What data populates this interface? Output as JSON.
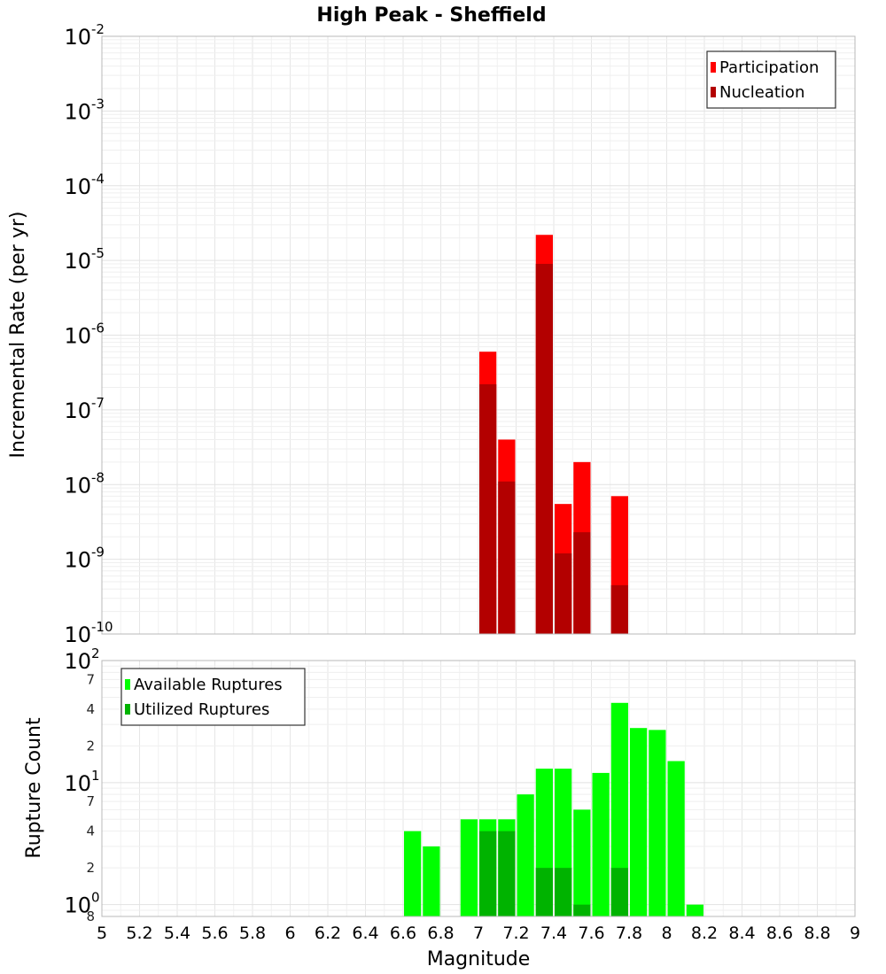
{
  "chart_data": [
    {
      "type": "bar",
      "title": "High Peak - Sheffield",
      "xlabel": "",
      "ylabel": "Incremental Rate (per yr)",
      "yscale": "log",
      "ylim": [
        1e-10,
        0.01
      ],
      "xlim": [
        5,
        9
      ],
      "bar_width": 0.1,
      "grid": true,
      "legend_position": "top-right",
      "y_major_ticks": [
        {
          "base": "10",
          "exp": "-10",
          "value": 1e-10
        },
        {
          "base": "10",
          "exp": "-9",
          "value": 1e-09
        },
        {
          "base": "10",
          "exp": "-8",
          "value": 1e-08
        },
        {
          "base": "10",
          "exp": "-7",
          "value": 1e-07
        },
        {
          "base": "10",
          "exp": "-6",
          "value": 1e-06
        },
        {
          "base": "10",
          "exp": "-5",
          "value": 1e-05
        },
        {
          "base": "10",
          "exp": "-4",
          "value": 0.0001
        },
        {
          "base": "10",
          "exp": "-3",
          "value": 0.001
        },
        {
          "base": "10",
          "exp": "-2",
          "value": 0.01
        }
      ],
      "series": [
        {
          "name": "Participation",
          "color": "#ff0000",
          "x": [
            7.05,
            7.15,
            7.35,
            7.45,
            7.55,
            7.75
          ],
          "values": [
            6e-07,
            4e-08,
            2.2e-05,
            5.5e-09,
            2e-08,
            7e-09
          ]
        },
        {
          "name": "Nucleation",
          "color": "#b30000",
          "x": [
            7.05,
            7.15,
            7.35,
            7.45,
            7.55,
            7.75
          ],
          "values": [
            2.2e-07,
            1.1e-08,
            9e-06,
            1.2e-09,
            2.3e-09,
            4.5e-10
          ]
        }
      ]
    },
    {
      "type": "bar",
      "title": "",
      "xlabel": "Magnitude",
      "ylabel": "Rupture Count",
      "yscale": "log",
      "ylim": [
        0.8,
        100
      ],
      "xlim": [
        5,
        9
      ],
      "bar_width": 0.1,
      "grid": true,
      "legend_position": "top-left",
      "x_ticks": [
        "5",
        "5.2",
        "5.4",
        "5.6",
        "5.8",
        "6",
        "6.2",
        "6.4",
        "6.6",
        "6.8",
        "7",
        "7.2",
        "7.4",
        "7.6",
        "7.8",
        "8",
        "8.2",
        "8.4",
        "8.6",
        "8.8",
        "9"
      ],
      "y_major_ticks": [
        {
          "base": "10",
          "exp": "0",
          "value": 1
        },
        {
          "base": "10",
          "exp": "1",
          "value": 10
        },
        {
          "base": "10",
          "exp": "2",
          "value": 100
        }
      ],
      "y_minor_ticks": [
        {
          "label": "8",
          "value": 0.8
        },
        {
          "label": "2",
          "value": 2
        },
        {
          "label": "4",
          "value": 4
        },
        {
          "label": "7",
          "value": 7
        },
        {
          "label": "2",
          "value": 20
        },
        {
          "label": "4",
          "value": 40
        },
        {
          "label": "7",
          "value": 70
        }
      ],
      "series": [
        {
          "name": "Available Ruptures",
          "color": "#00ff00",
          "x": [
            6.65,
            6.75,
            6.95,
            7.05,
            7.15,
            7.25,
            7.35,
            7.45,
            7.55,
            7.65,
            7.75,
            7.85,
            7.95,
            8.05,
            8.15
          ],
          "values": [
            4,
            3,
            5,
            5,
            5,
            8,
            13,
            13,
            6,
            12,
            45,
            28,
            27,
            15,
            1
          ]
        },
        {
          "name": "Utilized Ruptures",
          "color": "#00b300",
          "x": [
            7.05,
            7.15,
            7.35,
            7.45,
            7.55,
            7.75
          ],
          "values": [
            4,
            4,
            2,
            2,
            1,
            2
          ]
        }
      ]
    }
  ]
}
